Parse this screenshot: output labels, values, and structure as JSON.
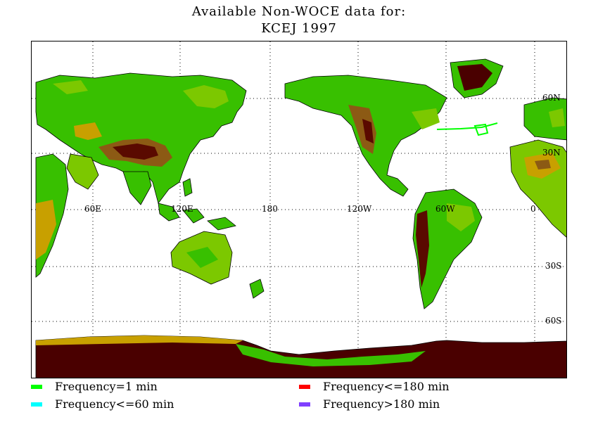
{
  "title": {
    "line1": "Available Non-WOCE data for:",
    "line2": "KCEJ 1997"
  },
  "map": {
    "projection": "equirectangular, Pacific-centered",
    "longitude_labels": [
      "60E",
      "120E",
      "180",
      "120W",
      "60W",
      "0"
    ],
    "latitude_labels": [
      "60N",
      "30N",
      "30S",
      "60S"
    ],
    "gridlines": "dotted",
    "colors": {
      "land_low": "#38c000",
      "land_mid": "#7cc800",
      "land_high": "#c8a000",
      "land_mountain": "#8c5a14",
      "land_peak": "#5a0a00",
      "ice": "#4a0000",
      "track": "#00ff00"
    }
  },
  "legend": [
    {
      "label": "Frequency=1 min",
      "color": "#00ff00"
    },
    {
      "label": "Frequency<=180 min",
      "color": "#ff0000"
    },
    {
      "label": "Frequency<=60 min",
      "color": "#00ffff"
    },
    {
      "label": "Frequency>180 min",
      "color": "#8040ff"
    }
  ]
}
